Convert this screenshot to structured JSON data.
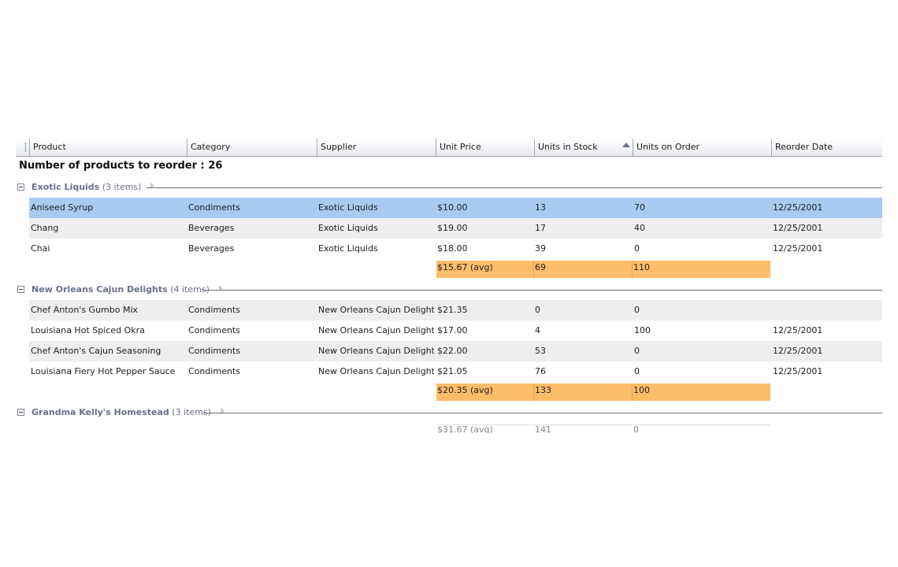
{
  "columns": [
    "Product",
    "Category",
    "Supplier",
    "Unit Price",
    "Units in Stock",
    "Units on Order",
    "Reorder Date"
  ],
  "summary_title": "Number of products to reorder : 26",
  "groups": [
    {
      "name": "Exotic Liquids",
      "count_label": "(3 items)",
      "rows": [
        {
          "product": "Aniseed Syrup",
          "category": "Condiments",
          "supplier": "Exotic Liquids",
          "price": "$10.00",
          "stock": "13",
          "on_order": "70",
          "reorder_date": "12/25/2001",
          "selected": true
        },
        {
          "product": "Chang",
          "category": "Beverages",
          "supplier": "Exotic Liquids",
          "price": "$19.00",
          "stock": "17",
          "on_order": "40",
          "reorder_date": "12/25/2001"
        },
        {
          "product": "Chai",
          "category": "Beverages",
          "supplier": "Exotic Liquids",
          "price": "$18.00",
          "stock": "39",
          "on_order": "0",
          "reorder_date": "12/25/2001"
        }
      ],
      "aggregate": {
        "price": "$15.67 (avg)",
        "stock": "69",
        "on_order": "110"
      }
    },
    {
      "name": "New Orleans Cajun Delights",
      "count_label": "(4 items)",
      "rows": [
        {
          "product": "Chef Anton's Gumbo Mix",
          "category": "Condiments",
          "supplier": "New Orleans Cajun Delights",
          "price": "$21.35",
          "stock": "0",
          "on_order": "0",
          "reorder_date": ""
        },
        {
          "product": "Louisiana Hot Spiced Okra",
          "category": "Condiments",
          "supplier": "New Orleans Cajun Delights",
          "price": "$17.00",
          "stock": "4",
          "on_order": "100",
          "reorder_date": "12/25/2001"
        },
        {
          "product": "Chef Anton's Cajun Seasoning",
          "category": "Condiments",
          "supplier": "New Orleans Cajun Delights",
          "price": "$22.00",
          "stock": "53",
          "on_order": "0",
          "reorder_date": "12/25/2001"
        },
        {
          "product": "Louisiana Fiery Hot Pepper Sauce",
          "category": "Condiments",
          "supplier": "New Orleans Cajun Delights",
          "price": "$21.05",
          "stock": "76",
          "on_order": "0",
          "reorder_date": "12/25/2001"
        }
      ],
      "aggregate": {
        "price": "$20.35 (avg)",
        "stock": "133",
        "on_order": "100"
      }
    },
    {
      "name": "Grandma Kelly's Homestead",
      "count_label": "(3 items)",
      "rows": [],
      "aggregate": {
        "price": "$31.67 (avg)",
        "stock": "141",
        "on_order": "0"
      }
    }
  ],
  "colors": {
    "selected_row": "#a8cbef",
    "alt_row": "#eeeef0",
    "aggregate": "#fdbd6a",
    "group_caption": "#6a6f8a"
  },
  "icons": {
    "group_toggle": "collapse-minus-icon",
    "sort": "sort-ascending-icon",
    "group_menu": "chevron-right-icon"
  }
}
